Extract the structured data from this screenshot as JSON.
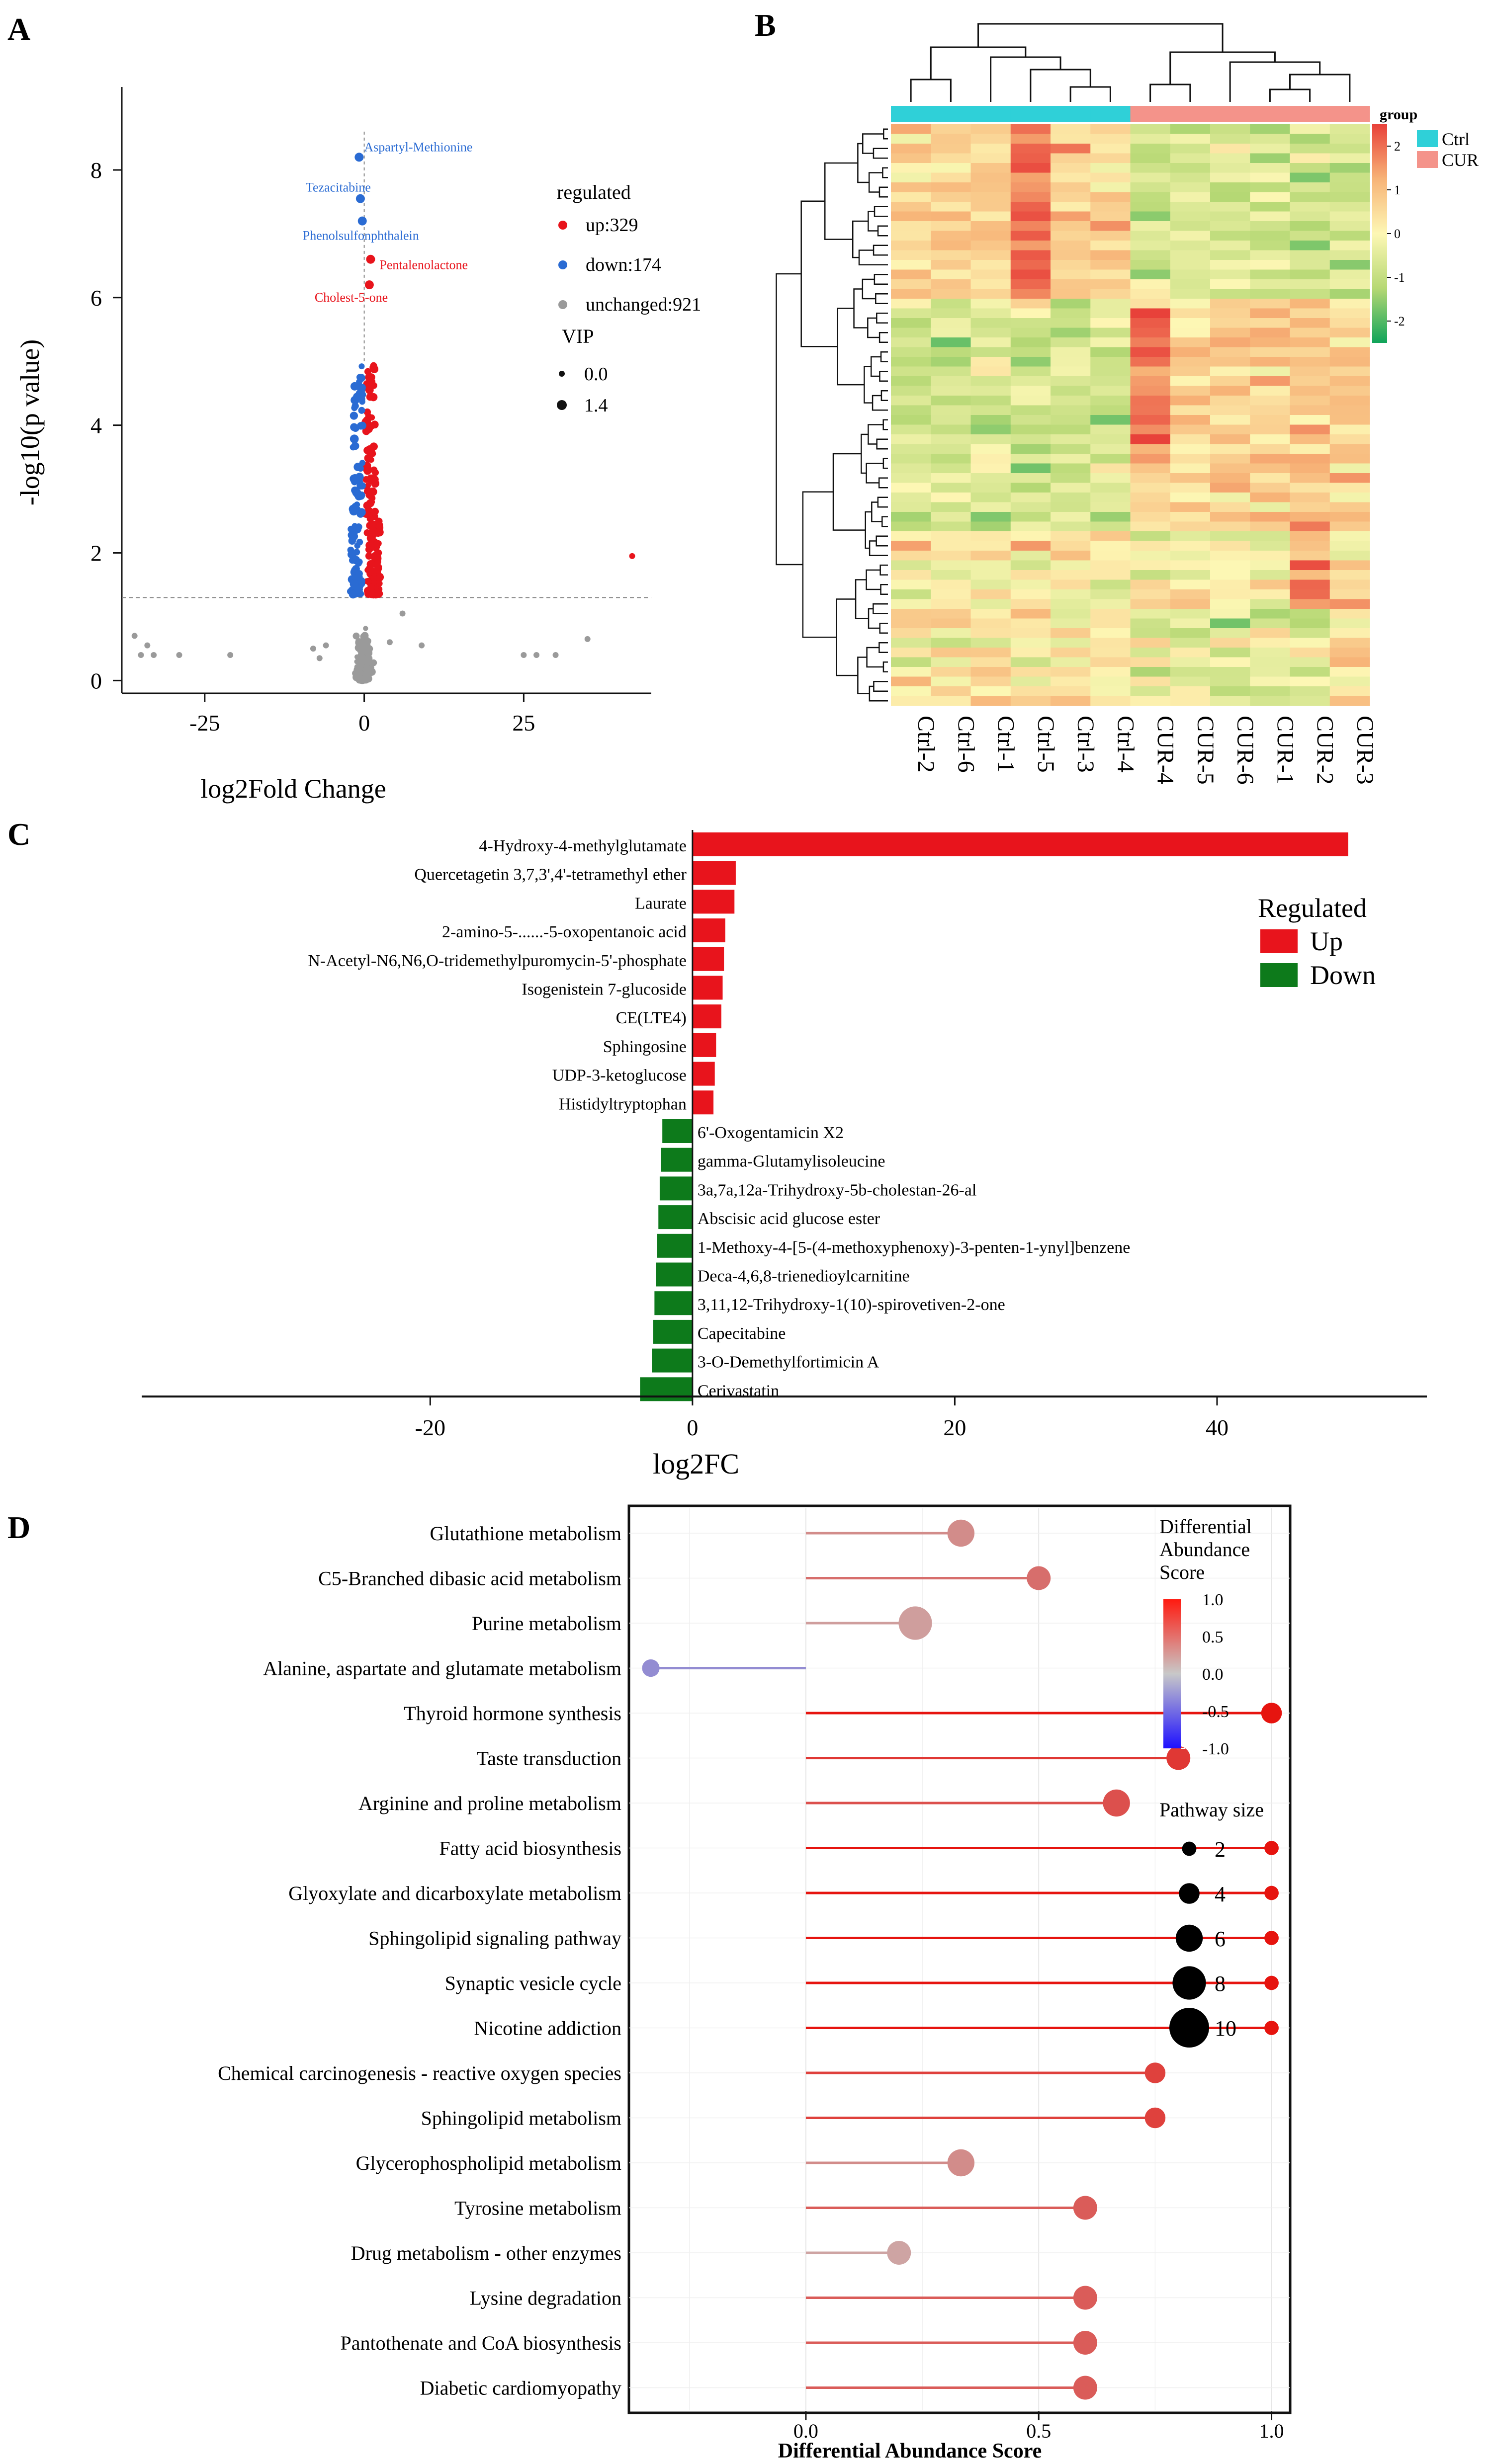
{
  "chart_data": [
    {
      "panel": "A",
      "type": "scatter",
      "title": "",
      "xlabel": "log2Fold Change",
      "ylabel": "-log10(p value)",
      "xlim": [
        -38,
        45
      ],
      "ylim": [
        -0.2,
        9.3
      ],
      "xticks": [
        -25,
        0,
        25
      ],
      "yticks": [
        0,
        2,
        4,
        6,
        8
      ],
      "threshold_y": 1.3,
      "legend_title": "regulated",
      "legend": [
        {
          "key": "up",
          "label": "up:329",
          "color": "#e8141c"
        },
        {
          "key": "down",
          "label": "down:174",
          "color": "#2a6bd3"
        },
        {
          "key": "unchanged",
          "label": "unchanged:921",
          "color": "#9a9a9a"
        }
      ],
      "vip_title": "VIP",
      "vip_legend": [
        "0.0",
        "1.4"
      ],
      "annotations": [
        {
          "label": "Aspartyl-Methionine",
          "x": -0.8,
          "y": 8.2,
          "group": "down"
        },
        {
          "label": "Tezacitabine",
          "x": -0.6,
          "y": 7.55,
          "group": "down"
        },
        {
          "label": "Phenolsulfonphthalein",
          "x": -0.3,
          "y": 7.2,
          "group": "down"
        },
        {
          "label": "Pentalenolactone",
          "x": 1.0,
          "y": 6.6,
          "group": "up"
        },
        {
          "label": "Cholest-5-one",
          "x": 0.8,
          "y": 6.2,
          "group": "up"
        }
      ],
      "outliers": [
        {
          "x": 42,
          "y": 1.95,
          "group": "up"
        },
        {
          "x": -36,
          "y": 0.7,
          "group": "unchanged"
        },
        {
          "x": -35,
          "y": 0.4,
          "group": "unchanged"
        },
        {
          "x": -34,
          "y": 0.55,
          "group": "unchanged"
        },
        {
          "x": -33,
          "y": 0.4,
          "group": "unchanged"
        },
        {
          "x": -29,
          "y": 0.4,
          "group": "unchanged"
        },
        {
          "x": -21,
          "y": 0.4,
          "group": "unchanged"
        },
        {
          "x": -8,
          "y": 0.5,
          "group": "unchanged"
        },
        {
          "x": -7,
          "y": 0.35,
          "group": "unchanged"
        },
        {
          "x": -6,
          "y": 0.55,
          "group": "unchanged"
        },
        {
          "x": 4,
          "y": 0.6,
          "group": "unchanged"
        },
        {
          "x": 6,
          "y": 1.05,
          "group": "unchanged"
        },
        {
          "x": 9,
          "y": 0.55,
          "group": "unchanged"
        },
        {
          "x": 25,
          "y": 0.4,
          "group": "unchanged"
        },
        {
          "x": 27,
          "y": 0.4,
          "group": "unchanged"
        },
        {
          "x": 30,
          "y": 0.4,
          "group": "unchanged"
        },
        {
          "x": 35,
          "y": 0.65,
          "group": "unchanged"
        }
      ]
    },
    {
      "panel": "B",
      "type": "heatmap",
      "columns": [
        "Ctrl-2",
        "Ctrl-6",
        "Ctrl-1",
        "Ctrl-5",
        "Ctrl-3",
        "Ctrl-4",
        "CUR-4",
        "CUR-5",
        "CUR-6",
        "CUR-1",
        "CUR-2",
        "CUR-3"
      ],
      "column_groups": [
        "Ctrl",
        "Ctrl",
        "Ctrl",
        "Ctrl",
        "Ctrl",
        "Ctrl",
        "CUR",
        "CUR",
        "CUR",
        "CUR",
        "CUR",
        "CUR"
      ],
      "group_legend_title": "group",
      "groups": [
        {
          "label": "Ctrl",
          "color": "#2fd0d8"
        },
        {
          "label": "CUR",
          "color": "#f4938a"
        }
      ],
      "scale_ticks": [
        "2",
        "1",
        "0",
        "-1",
        "-2"
      ],
      "scale_range": [
        -2.5,
        2.5
      ],
      "scale_colors": [
        "#10a45a",
        "#b6d874",
        "#fdf7b4",
        "#f7b377",
        "#e8413a"
      ],
      "row_count": 60,
      "seed": 20240613
    },
    {
      "panel": "C",
      "type": "bar",
      "orientation": "horizontal",
      "xlabel": "log2FC",
      "xlim": [
        -42,
        56
      ],
      "xticks": [
        -20,
        0,
        20,
        40
      ],
      "legend_title": "Regulated",
      "legend": [
        {
          "label": "Up",
          "color": "#e8141c"
        },
        {
          "label": "Down",
          "color": "#0d7a1b"
        }
      ],
      "categories": [
        "4-Hydroxy-4-methylglutamate",
        "Quercetagetin 3,7,3',4'-tetramethyl ether",
        "Laurate",
        "2-amino-5-......-5-oxopentanoic acid",
        "N-Acetyl-N6,N6,O-tridemethylpuromycin-5'-phosphate",
        "Isogenistein 7-glucoside",
        "CE(LTE4)",
        "Sphingosine",
        "UDP-3-ketoglucose",
        "Histidyltryptophan",
        "6'-Oxogentamicin X2",
        "gamma-Glutamylisoleucine",
        "3a,7a,12a-Trihydroxy-5b-cholestan-26-al",
        "Abscisic acid glucose ester",
        "1-Methoxy-4-[5-(4-methoxyphenoxy)-3-penten-1-ynyl]benzene",
        "Deca-4,6,8-trienedioylcarnitine",
        "3,11,12-Trihydroxy-1(10)-spirovetiven-2-one",
        "Capecitabine",
        "3-O-Demethylfortimicin A",
        "Cerivastatin"
      ],
      "values": [
        50.0,
        3.3,
        3.2,
        2.5,
        2.4,
        2.3,
        2.2,
        1.8,
        1.7,
        1.6,
        -2.3,
        -2.4,
        -2.5,
        -2.6,
        -2.7,
        -2.8,
        -2.9,
        -3.0,
        -3.1,
        -4.0
      ]
    },
    {
      "panel": "D",
      "type": "scatter",
      "subtype": "lollipop",
      "xlabel": "Differential Abundance Score",
      "xlim": [
        -0.38,
        1.04
      ],
      "xticks": [
        "0.0",
        "0.5",
        "1.0"
      ],
      "xtick_values": [
        0.0,
        0.5,
        1.0
      ],
      "color_legend_title": [
        "Differential",
        "Abundance",
        "Score"
      ],
      "color_ticks": [
        "1.0",
        "0.5",
        "0.0",
        "-0.5",
        "-1.0"
      ],
      "size_legend_title": "Pathway size",
      "size_legend": [
        2,
        4,
        6,
        8,
        10
      ],
      "categories": [
        "Glutathione metabolism",
        "C5-Branched dibasic acid metabolism",
        "Purine metabolism",
        "Alanine, aspartate and glutamate metabolism",
        "Thyroid hormone synthesis",
        "Taste transduction",
        "Arginine and proline metabolism",
        "Fatty acid biosynthesis",
        "Glyoxylate and dicarboxylate metabolism",
        "Sphingolipid signaling pathway",
        "Synaptic vesicle cycle",
        "Nicotine addiction",
        "Chemical carcinogenesis - reactive oxygen species",
        "Sphingolipid metabolism",
        "Glycerophospholipid metabolism",
        "Tyrosine metabolism",
        "Drug metabolism - other enzymes",
        "Lysine degradation",
        "Pantothenate and CoA biosynthesis",
        "Diabetic cardiomyopathy"
      ],
      "values": [
        0.333,
        0.5,
        0.235,
        -0.333,
        1.0,
        0.8,
        0.667,
        1.0,
        1.0,
        1.0,
        1.0,
        1.0,
        0.75,
        0.75,
        0.333,
        0.6,
        0.2,
        0.6,
        0.6,
        0.6
      ],
      "sizes": [
        6,
        5,
        8,
        3,
        4,
        5,
        6,
        2,
        2,
        2,
        2,
        2,
        4,
        4,
        6,
        5,
        5,
        5,
        5,
        5
      ]
    }
  ],
  "panel_labels": {
    "a": "A",
    "b": "B",
    "c": "C",
    "d": "D"
  }
}
